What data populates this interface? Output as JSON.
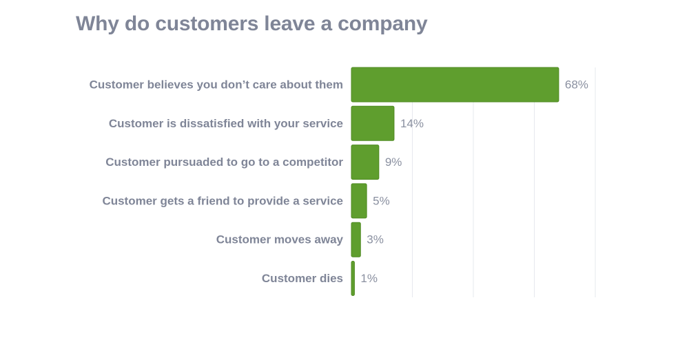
{
  "colors": {
    "bar": "#5f9e2e",
    "bar_edge": "#4f8a22",
    "text": "#7f8597",
    "grid": "#e6e8ee"
  },
  "chart_data": {
    "type": "bar",
    "orientation": "horizontal",
    "title": "Why do customers leave a company",
    "xlabel": "",
    "ylabel": "",
    "xlim": [
      0,
      80
    ],
    "grid": true,
    "categories": [
      "Customer believes you don’t care about them",
      "Customer is dissatisfied with your service",
      "Customer pursuaded to go to a competitor",
      "Customer gets a friend to provide a service",
      "Customer moves away",
      "Customer dies"
    ],
    "values": [
      68,
      14,
      9,
      5,
      3,
      1
    ],
    "value_labels": [
      "68%",
      "14%",
      "9%",
      "5%",
      "3%",
      "1%"
    ]
  }
}
